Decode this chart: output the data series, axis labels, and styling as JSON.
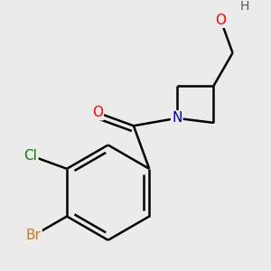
{
  "background_color": "#ebebeb",
  "bond_color": "#000000",
  "bond_width": 1.8,
  "atom_colors": {
    "O": "#ff0000",
    "N": "#0000cd",
    "Cl": "#008000",
    "Br": "#cc7722",
    "H": "#555555"
  },
  "font_size_atoms": 11,
  "font_size_h": 10
}
